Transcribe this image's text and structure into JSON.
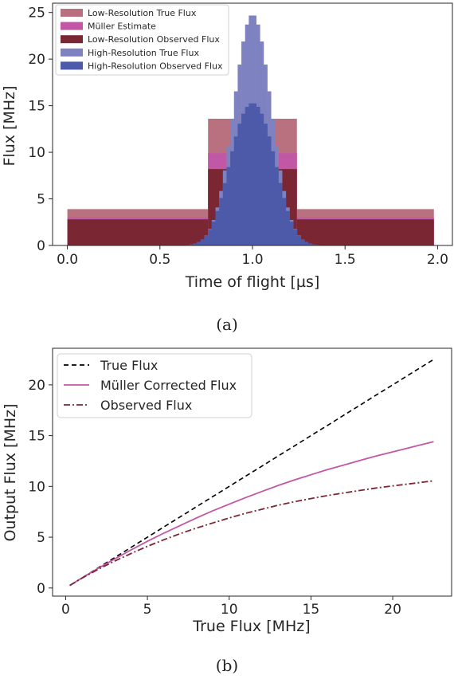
{
  "chart_data": [
    {
      "type": "bar",
      "panel_caption": "(a)",
      "xlabel": "Time of flight [µs]",
      "ylabel": "Flux [MHz]",
      "xlim": [
        -0.08,
        2.08
      ],
      "ylim": [
        0,
        26
      ],
      "xticks": [
        0.0,
        0.5,
        1.0,
        1.5,
        2.0
      ],
      "xtick_labels": [
        "0.0",
        "0.5",
        "1.0",
        "1.5",
        "2.0"
      ],
      "yticks": [
        0,
        5,
        10,
        15,
        20,
        25
      ],
      "ytick_labels": [
        "0",
        "5",
        "10",
        "15",
        "20",
        "25"
      ],
      "grid": false,
      "legend_position": "top-left",
      "series": [
        {
          "name": "Low-Resolution True Flux",
          "color": "#b9707f",
          "kind": "step",
          "edges": [
            0.0,
            0.76,
            1.24,
            1.98
          ],
          "values": [
            3.9,
            13.6,
            3.9
          ]
        },
        {
          "name": "Müller Estimate",
          "color": "#c257a5",
          "kind": "step",
          "edges": [
            0.0,
            0.76,
            1.24,
            1.98
          ],
          "values": [
            3.0,
            9.9,
            3.0
          ]
        },
        {
          "name": "Low-Resolution Observed Flux",
          "color": "#7b2633",
          "kind": "step",
          "edges": [
            0.0,
            0.76,
            1.24,
            1.98
          ],
          "values": [
            2.8,
            8.2,
            2.8
          ]
        },
        {
          "name": "High-Resolution True Flux",
          "color": "#7f82c0",
          "kind": "gaussian",
          "peak": 24.8,
          "center": 1.0,
          "sigma": 0.1,
          "bin_width": 0.02,
          "range": [
            0.6,
            1.4
          ]
        },
        {
          "name": "High-Resolution Observed Flux",
          "color": "#4d5aa9",
          "kind": "gaussian-saturating",
          "peak": 15.3,
          "center": 1.0,
          "sigma": 0.1,
          "bin_width": 0.02,
          "range": [
            0.6,
            1.4
          ]
        }
      ]
    },
    {
      "type": "line",
      "panel_caption": "(b)",
      "xlabel": "True Flux [MHz]",
      "ylabel": "Output Flux [MHz]",
      "xlim": [
        -0.8,
        23.6
      ],
      "ylim": [
        -0.8,
        23.6
      ],
      "xticks": [
        0,
        5,
        10,
        15,
        20
      ],
      "xtick_labels": [
        "0",
        "5",
        "10",
        "15",
        "20"
      ],
      "yticks": [
        0,
        5,
        10,
        15,
        20
      ],
      "ytick_labels": [
        "0",
        "5",
        "10",
        "15",
        "20"
      ],
      "grid": false,
      "legend_position": "top-left",
      "x": [
        0.25,
        1,
        2,
        3,
        4,
        5,
        6,
        7,
        8,
        9,
        10,
        11,
        12,
        13,
        14,
        15,
        16,
        17,
        18,
        19,
        20,
        21,
        22,
        22.5
      ],
      "series": [
        {
          "name": "True Flux",
          "color": "#000000",
          "dash": "dashed",
          "values": [
            0.25,
            1,
            2,
            3,
            4,
            5,
            6,
            7,
            8,
            9,
            10,
            11,
            12,
            13,
            14,
            15,
            16,
            17,
            18,
            19,
            20,
            21,
            22,
            22.5
          ]
        },
        {
          "name": "Müller Corrected Flux",
          "color": "#c257a5",
          "dash": "solid",
          "values": [
            0.25,
            0.99,
            1.95,
            2.86,
            3.75,
            4.6,
            5.4,
            6.15,
            6.9,
            7.6,
            8.25,
            8.9,
            9.5,
            10.1,
            10.65,
            11.15,
            11.65,
            12.1,
            12.55,
            13.0,
            13.4,
            13.8,
            14.2,
            14.4
          ]
        },
        {
          "name": "Observed Flux",
          "color": "#7b2633",
          "dash": "dashdot",
          "values": [
            0.25,
            0.97,
            1.85,
            2.65,
            3.4,
            4.1,
            4.75,
            5.35,
            5.9,
            6.4,
            6.9,
            7.35,
            7.75,
            8.15,
            8.5,
            8.8,
            9.1,
            9.35,
            9.6,
            9.85,
            10.05,
            10.25,
            10.45,
            10.55
          ]
        }
      ]
    }
  ]
}
